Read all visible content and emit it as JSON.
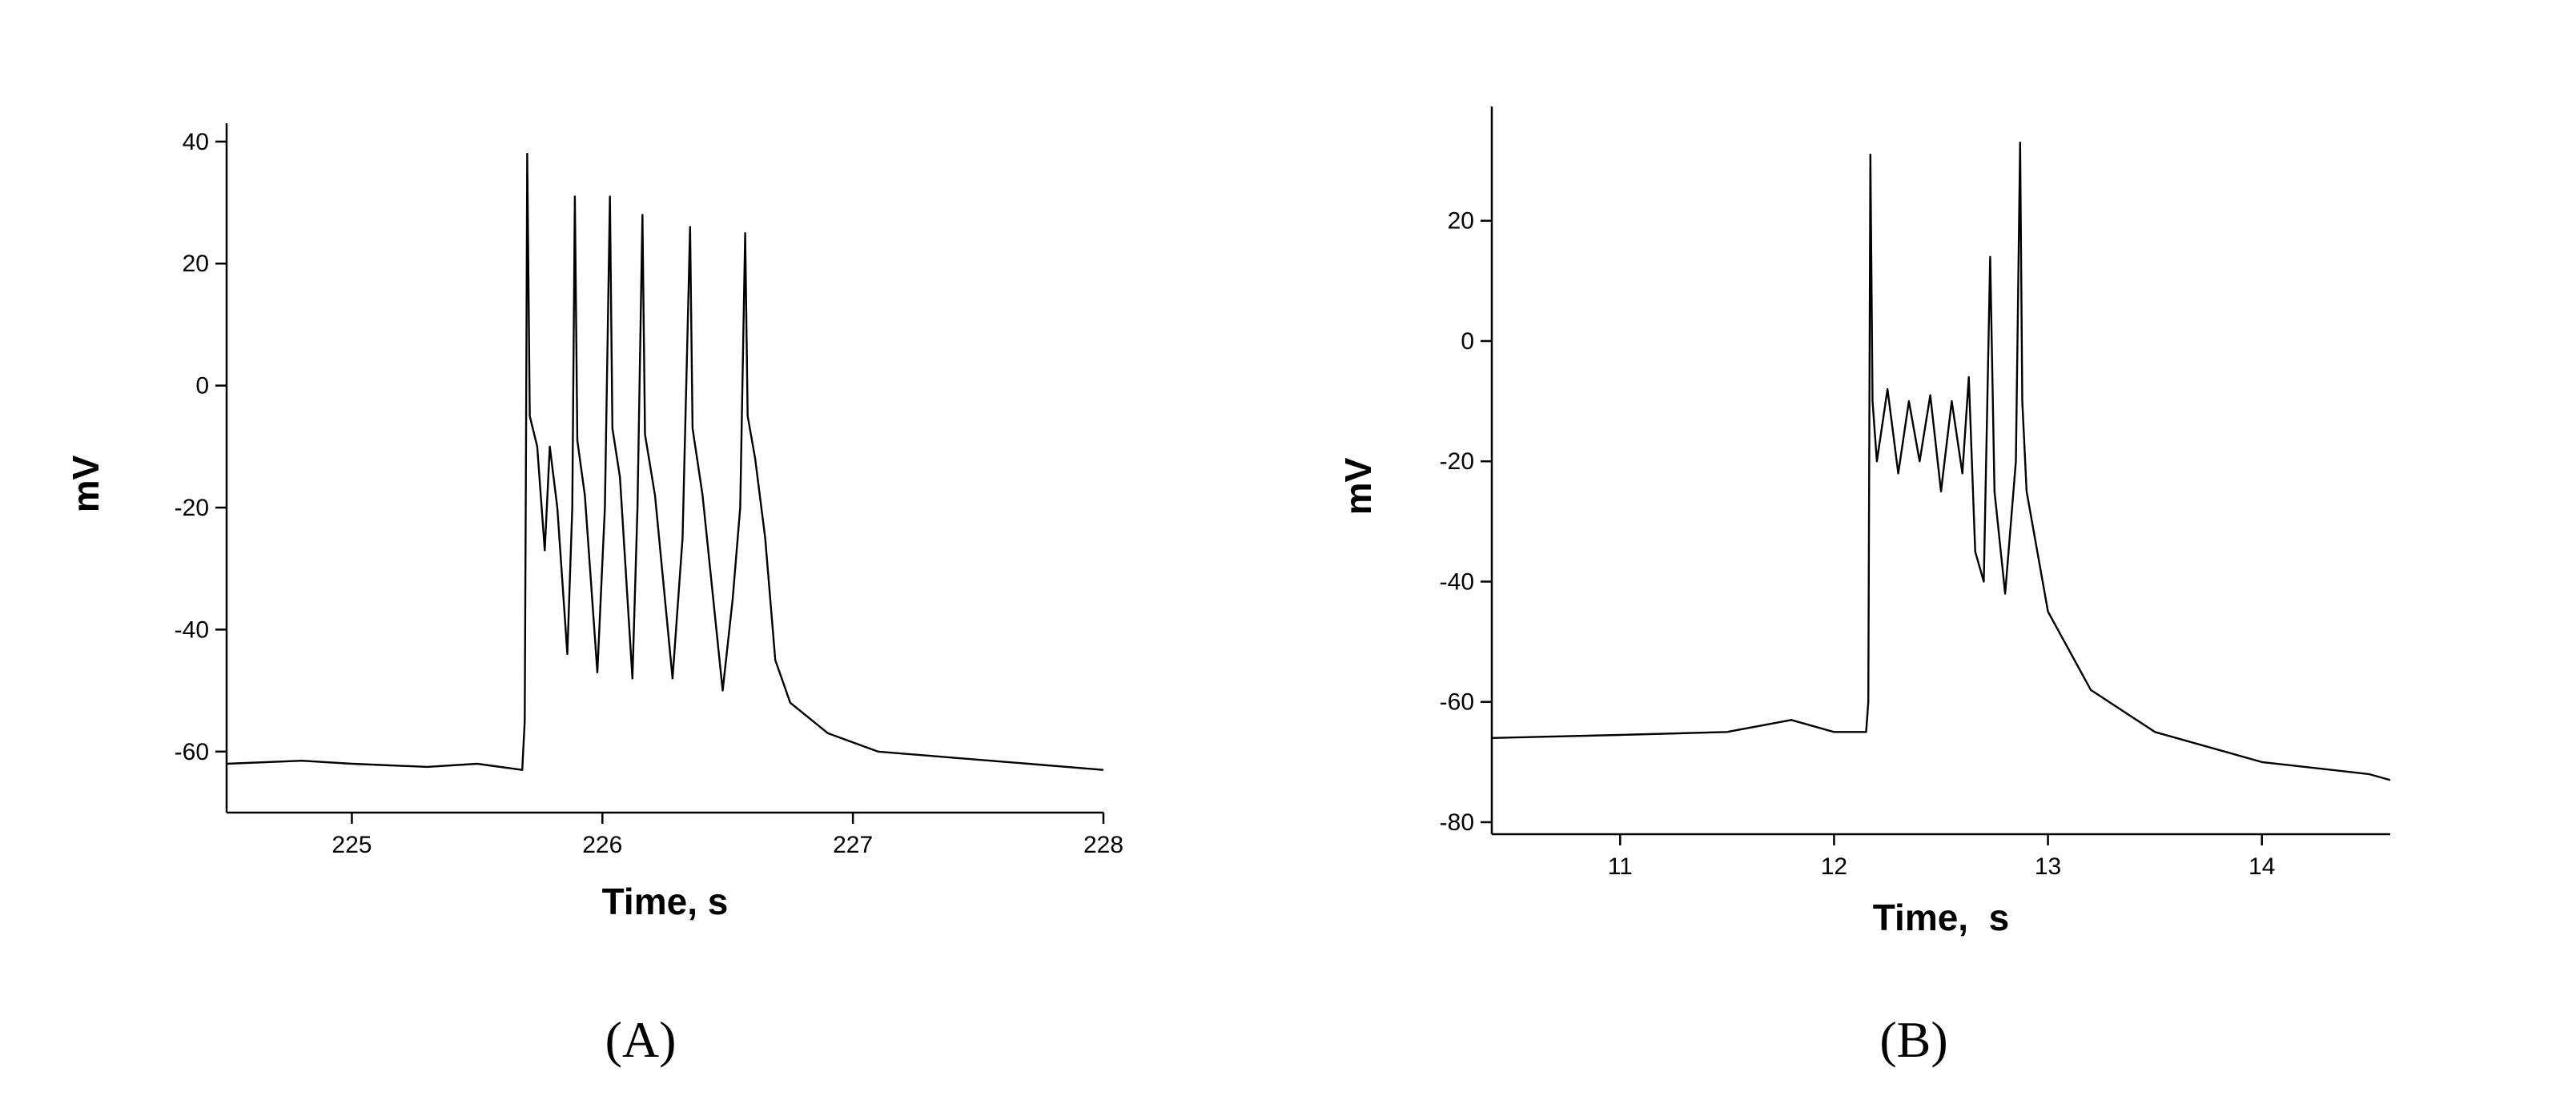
{
  "chart_data": [
    {
      "type": "line",
      "panel_label": "(A)",
      "xlabel": "Time, s",
      "ylabel": "mV",
      "xlim": [
        224.5,
        228.0
      ],
      "xticks": [
        225,
        226,
        227,
        228
      ],
      "ylim": [
        -70,
        43
      ],
      "yticks": [
        -60,
        -40,
        -20,
        0,
        20,
        40
      ],
      "color": "#000000",
      "x": [
        224.5,
        224.8,
        225.0,
        225.3,
        225.5,
        225.68,
        225.69,
        225.695,
        225.7,
        225.71,
        225.74,
        225.77,
        225.79,
        225.82,
        225.86,
        225.88,
        225.89,
        225.9,
        225.93,
        225.98,
        226.01,
        226.03,
        226.04,
        226.07,
        226.12,
        226.14,
        226.16,
        226.17,
        226.21,
        226.28,
        226.32,
        226.35,
        226.36,
        226.4,
        226.48,
        226.52,
        226.55,
        226.57,
        226.58,
        226.61,
        226.65,
        226.69,
        226.75,
        226.9,
        227.1,
        227.4,
        227.7,
        228.0
      ],
      "values": [
        -62,
        -61.5,
        -62,
        -62.5,
        -62,
        -63,
        -55,
        -10,
        38,
        -5,
        -10,
        -27,
        -10,
        -20,
        -44,
        -20,
        31,
        -9,
        -18,
        -47,
        -20,
        31,
        -7,
        -15,
        -48,
        -20,
        28,
        -8,
        -18,
        -48,
        -25,
        26,
        -7,
        -18,
        -50,
        -35,
        -20,
        25,
        -5,
        -12,
        -25,
        -45,
        -52,
        -57,
        -60,
        -61,
        -62,
        -63
      ]
    },
    {
      "type": "line",
      "panel_label": "(B)",
      "xlabel": "Time,  s",
      "ylabel": "mV",
      "xlim": [
        10.4,
        14.6
      ],
      "xticks": [
        11,
        12,
        13,
        14
      ],
      "ylim": [
        -82,
        39
      ],
      "yticks": [
        -80,
        -60,
        -40,
        -20,
        0,
        20
      ],
      "color": "#000000",
      "x": [
        10.4,
        11.0,
        11.5,
        11.8,
        12.0,
        12.15,
        12.16,
        12.17,
        12.18,
        12.2,
        12.25,
        12.3,
        12.35,
        12.4,
        12.45,
        12.5,
        12.55,
        12.6,
        12.63,
        12.66,
        12.7,
        12.73,
        12.75,
        12.8,
        12.85,
        12.87,
        12.88,
        12.9,
        13.0,
        13.2,
        13.5,
        14.0,
        14.5,
        14.6
      ],
      "values": [
        -66,
        -65.5,
        -65,
        -63,
        -65,
        -65,
        -60,
        31,
        -10,
        -20,
        -8,
        -22,
        -10,
        -20,
        -9,
        -25,
        -10,
        -22,
        -6,
        -35,
        -40,
        14,
        -25,
        -42,
        -20,
        33,
        -10,
        -25,
        -45,
        -58,
        -65,
        -70,
        -72,
        -73
      ]
    }
  ]
}
